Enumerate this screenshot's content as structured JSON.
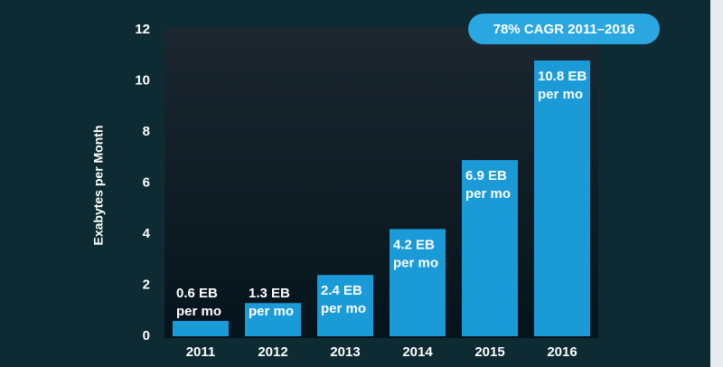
{
  "chart_data": {
    "type": "bar",
    "y_label": "Exabytes per Month",
    "annotation": "78% CAGR 2011–2016",
    "categories": [
      "2011",
      "2012",
      "2013",
      "2014",
      "2015",
      "2016"
    ],
    "values": [
      0.6,
      1.3,
      2.4,
      4.2,
      6.9,
      10.8
    ],
    "value_labels": [
      [
        "0.6 EB",
        "per mo"
      ],
      [
        "1.3 EB",
        "per mo"
      ],
      [
        "2.4 EB",
        "per mo"
      ],
      [
        "4.2 EB",
        "per mo"
      ],
      [
        "6.9 EB",
        "per mo"
      ],
      [
        "10.8 EB",
        "per mo"
      ]
    ],
    "color": "#1b9ad8",
    "ylim": [
      0,
      12
    ],
    "yticks": [
      0,
      2,
      4,
      6,
      8,
      10,
      12
    ],
    "grid": false
  }
}
